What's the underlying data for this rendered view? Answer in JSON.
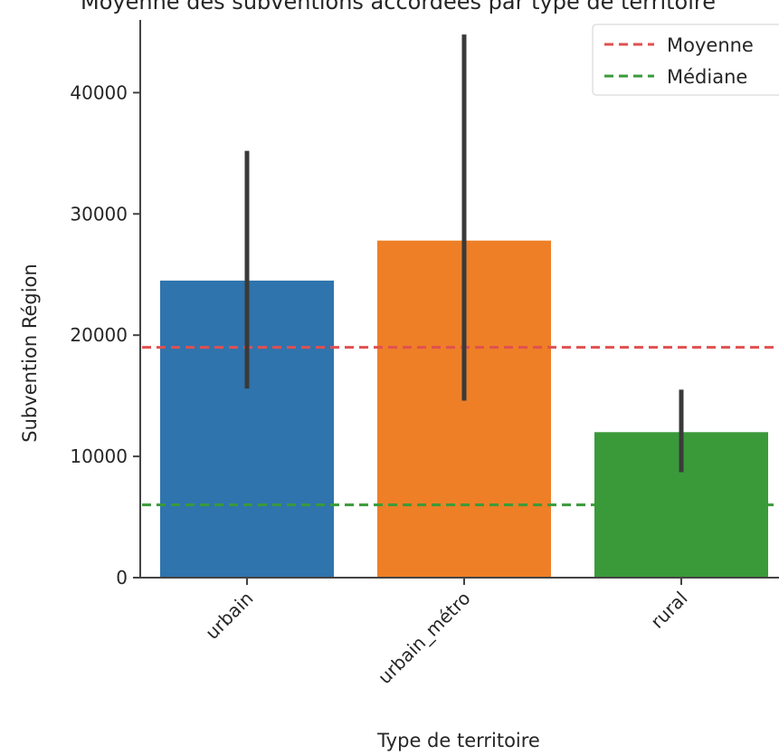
{
  "chart_data": {
    "type": "bar",
    "title": "Moyenne des subventions accordées par type de territoire",
    "xlabel": "Type de territoire",
    "ylabel": "Subvention Région",
    "categories": [
      "urbain",
      "urbain_métro",
      "rural"
    ],
    "values": [
      24500,
      27800,
      12000
    ],
    "error_bars": [
      {
        "low": 15600,
        "high": 35200
      },
      {
        "low": 14600,
        "high": 44800
      },
      {
        "low": 8700,
        "high": 15500
      }
    ],
    "colors": [
      "#2f74ad",
      "#ee7f27",
      "#3a9a3a"
    ],
    "ylim": [
      0,
      46000
    ],
    "yticks": [
      0,
      10000,
      20000,
      30000,
      40000
    ],
    "reference_lines": [
      {
        "name": "Moyenne",
        "value": 19000,
        "color": "#e05050",
        "style": "dashed"
      },
      {
        "name": "Médiane",
        "value": 6000,
        "color": "#3a9a3a",
        "style": "dashed"
      }
    ],
    "legend": {
      "placement": "top-right",
      "entries": [
        "Moyenne",
        "Médiane"
      ]
    },
    "grid": false
  }
}
